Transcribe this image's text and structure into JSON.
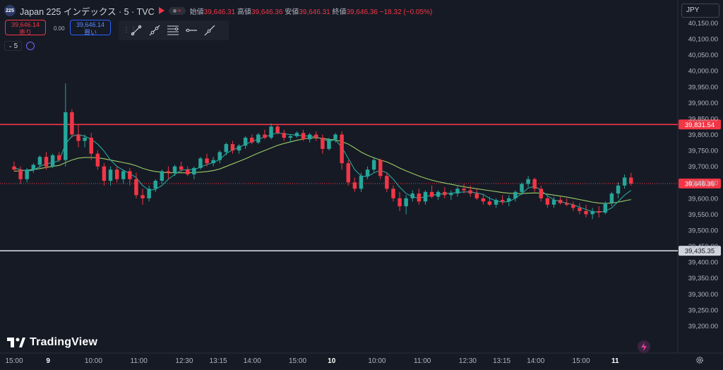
{
  "header": {
    "symbol_badge": "225",
    "title": "Japan 225 インデックス · 5 · TVC",
    "open_label": "始値",
    "open_value": "39,646.31",
    "high_label": "高値",
    "high_value": "39,646.36",
    "low_label": "安値",
    "low_value": "39,646.31",
    "close_label": "終値",
    "close_value": "39,646.36",
    "change": "−18.32 (−0.05%)"
  },
  "trade": {
    "sell_price": "39,646.14",
    "sell_label": "売り",
    "spread": "0.00",
    "buy_price": "39,646.14",
    "buy_label": "買い"
  },
  "toolbar": {
    "tools": [
      "trend-line-icon",
      "ray-icon",
      "fib-retracement-icon",
      "horizontal-line-icon",
      "extended-line-icon"
    ]
  },
  "interval": "5",
  "currency": "JPY",
  "logo_text": "TradingView",
  "colors": {
    "background": "#161a25",
    "up": "#26a69a",
    "down": "#f23645",
    "ma_fast": "#26a69a",
    "ma_slow": "#9ccc65",
    "resistance": "#f23645",
    "support": "#d1d4dc",
    "text": "#b2b5be"
  },
  "chart_data": {
    "type": "candlestick",
    "ylim": [
      39150,
      40160
    ],
    "y_ticks": [
      39200,
      39250,
      39300,
      39350,
      39400,
      39450,
      39500,
      39550,
      39600,
      39650,
      39700,
      39750,
      39800,
      39850,
      39900,
      39950,
      40000,
      40050,
      40100,
      40150
    ],
    "y_tick_labels": [
      "39,200.00",
      "39,250.00",
      "39,300.00",
      "39,350.00",
      "39,400.00",
      "39,450.00",
      "39,500.00",
      "39,550.00",
      "39,600.00",
      "39,650.00",
      "39,700.00",
      "39,750.00",
      "39,800.00",
      "39,850.00",
      "39,900.00",
      "39,950.00",
      "40,000.00",
      "40,050.00",
      "40,100.00",
      "40,150.00"
    ],
    "x_labels": [
      {
        "label": "15:00",
        "bar": 0
      },
      {
        "label": "9",
        "bar": 9
      },
      {
        "label": "10:00",
        "bar": 21
      },
      {
        "label": "11:00",
        "bar": 33
      },
      {
        "label": "12:30",
        "bar": 45
      },
      {
        "label": "13:15",
        "bar": 54
      },
      {
        "label": "14:00",
        "bar": 63
      },
      {
        "label": "15:00",
        "bar": 75
      },
      {
        "label": "10",
        "bar": 84
      },
      {
        "label": "10:00",
        "bar": 96
      },
      {
        "label": "11:00",
        "bar": 108
      },
      {
        "label": "12:30",
        "bar": 120
      },
      {
        "label": "13:15",
        "bar": 129
      },
      {
        "label": "14:00",
        "bar": 138
      },
      {
        "label": "15:00",
        "bar": 150
      },
      {
        "label": "11",
        "bar": 159
      }
    ],
    "bold_x_labels": [
      "9",
      "10",
      "11"
    ],
    "bar_count": 165,
    "candles": [
      [
        0,
        39700,
        39715,
        39685,
        39690
      ],
      [
        1,
        39690,
        39700,
        39645,
        39660
      ],
      [
        2,
        39660,
        39695,
        39650,
        39690
      ],
      [
        3,
        39690,
        39710,
        39680,
        39705
      ],
      [
        4,
        39705,
        39735,
        39695,
        39730
      ],
      [
        5,
        39730,
        39745,
        39690,
        39700
      ],
      [
        6,
        39700,
        39740,
        39695,
        39735
      ],
      [
        7,
        39735,
        39745,
        39715,
        39720
      ],
      [
        8,
        39720,
        39960,
        39700,
        39870
      ],
      [
        9,
        39870,
        39880,
        39790,
        39800
      ],
      [
        10,
        39800,
        39830,
        39760,
        39780
      ],
      [
        11,
        39780,
        39800,
        39760,
        39790
      ],
      [
        12,
        39790,
        39805,
        39720,
        39740
      ],
      [
        13,
        39740,
        39750,
        39690,
        39700
      ],
      [
        14,
        39700,
        39710,
        39640,
        39655
      ],
      [
        15,
        39655,
        39700,
        39640,
        39690
      ],
      [
        16,
        39690,
        39700,
        39650,
        39660
      ],
      [
        17,
        39660,
        39690,
        39645,
        39685
      ],
      [
        18,
        39685,
        39695,
        39640,
        39660
      ],
      [
        19,
        39660,
        39680,
        39600,
        39610
      ],
      [
        20,
        39610,
        39630,
        39580,
        39600
      ],
      [
        21,
        39600,
        39640,
        39590,
        39630
      ],
      [
        22,
        39630,
        39660,
        39620,
        39655
      ],
      [
        23,
        39655,
        39690,
        39645,
        39685
      ],
      [
        24,
        39685,
        39700,
        39660,
        39680
      ],
      [
        25,
        39680,
        39705,
        39670,
        39700
      ],
      [
        26,
        39700,
        39715,
        39680,
        39690
      ],
      [
        27,
        39690,
        39700,
        39670,
        39675
      ],
      [
        28,
        39675,
        39700,
        39660,
        39695
      ],
      [
        29,
        39695,
        39730,
        39690,
        39725
      ],
      [
        30,
        39725,
        39740,
        39700,
        39710
      ],
      [
        31,
        39710,
        39730,
        39700,
        39720
      ],
      [
        32,
        39720,
        39750,
        39710,
        39745
      ],
      [
        33,
        39745,
        39775,
        39735,
        39770
      ],
      [
        34,
        39770,
        39780,
        39740,
        39750
      ],
      [
        35,
        39750,
        39770,
        39740,
        39765
      ],
      [
        36,
        39765,
        39795,
        39755,
        39790
      ],
      [
        37,
        39790,
        39800,
        39770,
        39775
      ],
      [
        38,
        39775,
        39805,
        39770,
        39800
      ],
      [
        39,
        39800,
        39815,
        39785,
        39790
      ],
      [
        40,
        39790,
        39835,
        39785,
        39825
      ],
      [
        41,
        39825,
        39830,
        39800,
        39805
      ],
      [
        42,
        39805,
        39815,
        39780,
        39790
      ],
      [
        43,
        39790,
        39800,
        39775,
        39795
      ],
      [
        44,
        39795,
        39810,
        39790,
        39805
      ],
      [
        45,
        39805,
        39815,
        39780,
        39785
      ],
      [
        46,
        39785,
        39805,
        39775,
        39800
      ],
      [
        47,
        39800,
        39810,
        39780,
        39790
      ],
      [
        48,
        39790,
        39800,
        39740,
        39755
      ],
      [
        49,
        39755,
        39790,
        39750,
        39785
      ],
      [
        50,
        39785,
        39805,
        39775,
        39800
      ],
      [
        51,
        39800,
        39810,
        39690,
        39710
      ],
      [
        52,
        39710,
        39720,
        39640,
        39650
      ],
      [
        53,
        39650,
        39665,
        39620,
        39630
      ],
      [
        54,
        39630,
        39680,
        39620,
        39670
      ],
      [
        55,
        39670,
        39700,
        39660,
        39690
      ],
      [
        56,
        39690,
        39730,
        39680,
        39720
      ],
      [
        57,
        39720,
        39725,
        39660,
        39670
      ],
      [
        58,
        39670,
        39680,
        39620,
        39630
      ],
      [
        59,
        39630,
        39640,
        39590,
        39600
      ],
      [
        60,
        39600,
        39620,
        39560,
        39575
      ],
      [
        61,
        39575,
        39610,
        39550,
        39600
      ],
      [
        62,
        39600,
        39625,
        39590,
        39615
      ],
      [
        63,
        39615,
        39630,
        39580,
        39590
      ],
      [
        64,
        39590,
        39625,
        39580,
        39620
      ],
      [
        65,
        39620,
        39640,
        39600,
        39605
      ],
      [
        66,
        39605,
        39625,
        39595,
        39620
      ],
      [
        67,
        39620,
        39635,
        39600,
        39610
      ],
      [
        68,
        39610,
        39625,
        39595,
        39615
      ],
      [
        69,
        39615,
        39640,
        39605,
        39630
      ],
      [
        70,
        39630,
        39645,
        39615,
        39625
      ],
      [
        71,
        39625,
        39640,
        39605,
        39615
      ],
      [
        72,
        39615,
        39630,
        39595,
        39600
      ],
      [
        73,
        39600,
        39615,
        39580,
        39590
      ],
      [
        74,
        39590,
        39605,
        39575,
        39580
      ],
      [
        75,
        39580,
        39600,
        39570,
        39595
      ],
      [
        76,
        39595,
        39610,
        39580,
        39590
      ],
      [
        77,
        39590,
        39610,
        39575,
        39600
      ],
      [
        78,
        39600,
        39625,
        39590,
        39620
      ],
      [
        79,
        39620,
        39650,
        39610,
        39645
      ],
      [
        80,
        39645,
        39670,
        39635,
        39660
      ],
      [
        81,
        39660,
        39665,
        39620,
        39630
      ],
      [
        82,
        39630,
        39640,
        39590,
        39600
      ],
      [
        83,
        39600,
        39610,
        39570,
        39580
      ],
      [
        84,
        39580,
        39605,
        39570,
        39595
      ],
      [
        85,
        39595,
        39605,
        39580,
        39585
      ],
      [
        86,
        39585,
        39600,
        39575,
        39580
      ],
      [
        87,
        39580,
        39590,
        39560,
        39570
      ],
      [
        88,
        39570,
        39585,
        39550,
        39560
      ],
      [
        89,
        39560,
        39580,
        39540,
        39550
      ],
      [
        90,
        39550,
        39570,
        39535,
        39560
      ],
      [
        91,
        39560,
        39575,
        39540,
        39555
      ],
      [
        92,
        39555,
        39590,
        39550,
        39585
      ],
      [
        93,
        39585,
        39620,
        39575,
        39615
      ],
      [
        94,
        39615,
        39650,
        39600,
        39640
      ],
      [
        95,
        39640,
        39675,
        39630,
        39665
      ],
      [
        96,
        39665,
        39680,
        39640,
        39646
      ]
    ],
    "ma_fast": [
      39695,
      39690,
      39685,
      39688,
      39700,
      39708,
      39712,
      39718,
      39770,
      39795,
      39800,
      39795,
      39785,
      39770,
      39748,
      39720,
      39700,
      39688,
      39678,
      39665,
      39640,
      39625,
      39628,
      39640,
      39660,
      39675,
      39688,
      39690,
      39690,
      39698,
      39706,
      39712,
      39722,
      39740,
      39752,
      39760,
      39770,
      39778,
      39786,
      39792,
      39800,
      39805,
      39802,
      39800,
      39798,
      39796,
      39795,
      39793,
      39785,
      39780,
      39783,
      39760,
      39725,
      39690,
      39670,
      39668,
      39680,
      39688,
      39680,
      39660,
      39635,
      39615,
      39605,
      39600,
      39605,
      39610,
      39612,
      39615,
      39616,
      39618,
      39620,
      39620,
      39617,
      39612,
      39600,
      39592,
      39588,
      39590,
      39600,
      39615,
      39632,
      39638,
      39625,
      39608,
      39595,
      39590,
      39585,
      39580,
      39572,
      39565,
      39558,
      39556,
      39560,
      39570,
      39590,
      39610,
      39625
    ],
    "ma_slow": [
      39685,
      39686,
      39688,
      39690,
      39693,
      39697,
      39700,
      39703,
      39712,
      39720,
      39726,
      39728,
      39728,
      39727,
      39724,
      39720,
      39716,
      39712,
      39708,
      39702,
      39694,
      39688,
      39684,
      39682,
      39680,
      39680,
      39680,
      39680,
      39681,
      39682,
      39684,
      39687,
      39692,
      39700,
      39708,
      39716,
      39724,
      39733,
      39742,
      39750,
      39758,
      39766,
      39772,
      39777,
      39782,
      39786,
      39789,
      39790,
      39788,
      39785,
      39783,
      39778,
      39770,
      39758,
      39745,
      39735,
      39727,
      39720,
      39714,
      39705,
      39695,
      39686,
      39678,
      39670,
      39663,
      39657,
      39652,
      39648,
      39644,
      39640,
      39636,
      39633,
      39630,
      39627,
      39624,
      39621,
      39618,
      39616,
      39615,
      39615,
      39616,
      39617,
      39616,
      39613,
      39610,
      39607,
      39604,
      39600,
      39596,
      39592,
      39588,
      39585,
      39584,
      39585,
      39588,
      39592,
      39596
    ],
    "levels": [
      {
        "name": "resistance",
        "value": 39831.54,
        "label": "39,831.54"
      },
      {
        "name": "support",
        "value": 39435.35,
        "label": "39,435.35"
      }
    ],
    "last_price": {
      "value": 39646.36,
      "label": "39,646.36"
    }
  }
}
